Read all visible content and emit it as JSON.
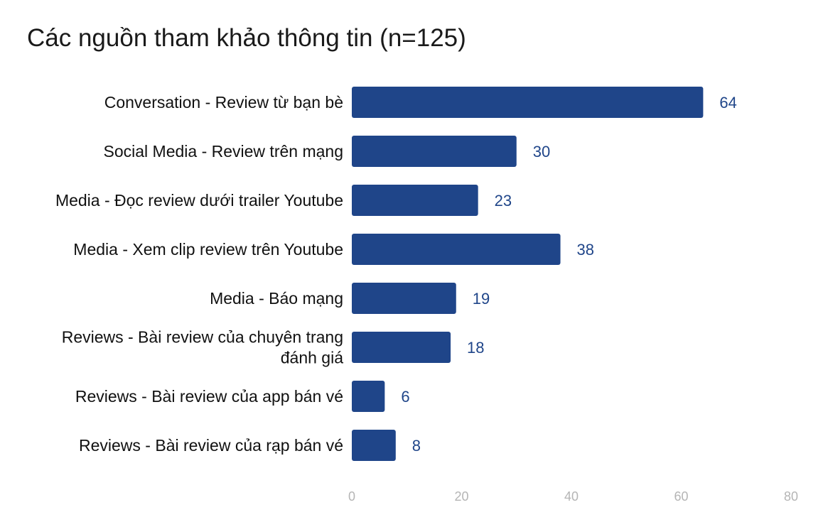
{
  "chart_data": {
    "type": "bar",
    "orientation": "horizontal",
    "title": "Các nguồn tham khảo thông tin (n=125)",
    "categories": [
      [
        "Conversation - Review từ bạn bè"
      ],
      [
        "Social Media - Review trên mạng"
      ],
      [
        "Media - Đọc review dưới trailer Youtube"
      ],
      [
        "Media - Xem clip review trên Youtube"
      ],
      [
        "Media - Báo mạng"
      ],
      [
        "Reviews - Bài review của chuyên trang",
        "đánh giá"
      ],
      [
        "Reviews - Bài review của app bán vé"
      ],
      [
        "Reviews - Bài review của rạp bán vé"
      ]
    ],
    "values": [
      64,
      30,
      23,
      38,
      19,
      18,
      6,
      8
    ],
    "xlim": [
      0,
      80
    ],
    "xticks": [
      "0",
      "20",
      "40",
      "60",
      "80"
    ],
    "grid": false,
    "colors": {
      "bar": "#1f4589",
      "value_label": "#1f4589",
      "tick": "#b5b5b5"
    }
  }
}
